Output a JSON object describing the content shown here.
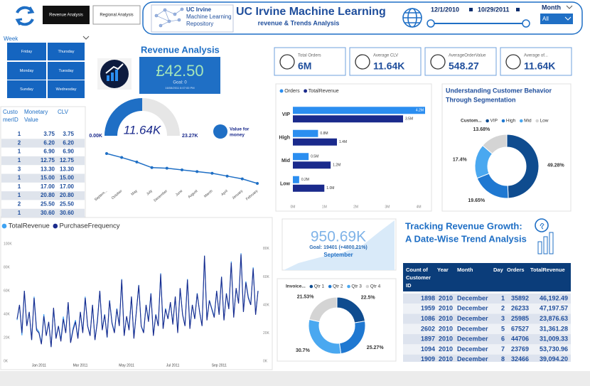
{
  "header": {
    "buttons": [
      "Revenue Analysis",
      "Regional Analysis"
    ],
    "logo": [
      "UC Irvine",
      "Machine Learning",
      "Repository"
    ],
    "title": "UC Irvine Machine Learning",
    "subtitle": "revenue & Trends Analysis",
    "date_start": "12/1/2010",
    "date_end": "10/29/2011",
    "month_label": "Month",
    "month_value": "All"
  },
  "week_slicer": {
    "label": "Week",
    "days": [
      "Friday",
      "Thursday",
      "Monday",
      "Tuesday",
      "Sunday",
      "Wednesday"
    ]
  },
  "revenue_card": {
    "title": "Revenue Analysis",
    "value": "£42.50",
    "goal": "Goal: 0",
    "timestamp": "16/08/2011 6:07:00 PM"
  },
  "kpis": [
    {
      "label": "Total Orders",
      "value": "6M"
    },
    {
      "label": "Average CLV",
      "value": "11.64K"
    },
    {
      "label": "AverageOrderValue",
      "value": "548.27"
    },
    {
      "label": "Average of...",
      "value": "11.64K"
    }
  ],
  "customer_table": {
    "columns": [
      [
        "Custo",
        "merID"
      ],
      [
        "Monetary",
        "Value"
      ],
      [
        "CLV"
      ]
    ],
    "rows": [
      [
        "1",
        "3.75",
        "3.75"
      ],
      [
        "2",
        "6.20",
        "6.20"
      ],
      [
        "1",
        "6.90",
        "6.90"
      ],
      [
        "1",
        "12.75",
        "12.75"
      ],
      [
        "3",
        "13.30",
        "13.30"
      ],
      [
        "1",
        "15.00",
        "15.00"
      ],
      [
        "1",
        "17.00",
        "17.00"
      ],
      [
        "1",
        "20.80",
        "20.80"
      ],
      [
        "2",
        "25.50",
        "25.50"
      ],
      [
        "1",
        "30.60",
        "30.60"
      ]
    ]
  },
  "value_logo": [
    "Value for",
    "money"
  ],
  "september_card": {
    "value": "950.69K",
    "goal": "Goal: 19401 (+4800.21%)",
    "label": "September"
  },
  "growth_title": [
    "Tracking Revenue Growth:",
    "A Date-Wise Trend Analysis"
  ],
  "date_table": {
    "columns": [
      [
        "Count of",
        "Customer",
        "ID"
      ],
      [
        "Year"
      ],
      [
        "Month"
      ],
      [
        "Day"
      ],
      [
        "Orders"
      ],
      [
        "TotalRevenue"
      ]
    ],
    "rows": [
      [
        "1898",
        "2010",
        "December",
        "1",
        "35892",
        "46,192.49"
      ],
      [
        "1959",
        "2010",
        "December",
        "2",
        "26233",
        "47,197.57"
      ],
      [
        "1086",
        "2010",
        "December",
        "3",
        "25985",
        "23,876.63"
      ],
      [
        "2602",
        "2010",
        "December",
        "5",
        "67527",
        "31,361.28"
      ],
      [
        "1897",
        "2010",
        "December",
        "6",
        "44706",
        "31,009.33"
      ],
      [
        "1094",
        "2010",
        "December",
        "7",
        "23769",
        "53,730.96"
      ],
      [
        "1909",
        "2010",
        "December",
        "8",
        "32466",
        "39,094.20"
      ]
    ]
  },
  "chart_data": [
    {
      "type": "gauge",
      "values": [
        11.64
      ],
      "value_labels": [
        "11.64K"
      ],
      "color": "#1f6fc5",
      "ylim": [
        0,
        23.27
      ],
      "yticks": [
        {
          "value": 0,
          "label": "0.00K"
        },
        {
          "value": 23.27,
          "label": "23.27K"
        }
      ]
    },
    {
      "type": "line",
      "markers": true,
      "color": "#1f6fc5",
      "categories": [
        "Septem...",
        "October",
        "May",
        "July",
        "December",
        "June",
        "August",
        "March",
        "April",
        "January",
        "February"
      ],
      "values": [
        15.5,
        14.8,
        14.0,
        13.0,
        12.9,
        12.6,
        12.3,
        12.0,
        11.5,
        11.0,
        10.2
      ]
    },
    {
      "type": "bar",
      "orientation": "horizontal",
      "categories": [
        "VIP",
        "High",
        "Mid",
        "Low"
      ],
      "series": [
        {
          "name": "Orders",
          "color": "#2b8ef0",
          "values": [
            4.2,
            0.8,
            0.5,
            0.2
          ],
          "value_labels": [
            "4.2M",
            "0.8M",
            "0.5M",
            "0.2M"
          ]
        },
        {
          "name": "TotalRevenue",
          "color": "#1a2a8c",
          "values": [
            3.5,
            1.4,
            1.2,
            1.0
          ],
          "value_labels": [
            "3.5M",
            "1.4M",
            "1.2M",
            "1.0M"
          ]
        }
      ],
      "xlim": [
        0,
        4.2
      ],
      "xticks": [
        {
          "value": 0,
          "label": "0M"
        },
        {
          "value": 1,
          "label": "1M"
        },
        {
          "value": 2,
          "label": "2M"
        },
        {
          "value": 3,
          "label": "3M"
        },
        {
          "value": 4,
          "label": "4M"
        }
      ]
    },
    {
      "type": "pie",
      "donut": true,
      "title": [
        "Understanding Customer Behavior",
        "Through Segmentation"
      ],
      "legend_title": "Custom...",
      "categories": [
        "VIP",
        "High",
        "Mid",
        "Low"
      ],
      "values": [
        49.28,
        19.65,
        17.4,
        13.68
      ],
      "value_labels": [
        "49.28%",
        "19.65%",
        "17.4%",
        "13.68%"
      ],
      "colors": [
        "#0f4c8f",
        "#1f78d1",
        "#4aa8f0",
        "#d4d4d4"
      ]
    },
    {
      "type": "line",
      "grid": false,
      "categories": [
        null,
        null,
        null,
        null,
        null,
        null,
        null,
        null,
        null,
        "Jan 2011",
        null,
        null,
        null,
        null,
        null,
        null,
        null,
        null,
        null,
        null,
        null,
        null,
        null,
        null,
        null,
        null,
        "Mar 2011",
        null,
        null,
        null,
        null,
        null,
        null,
        null,
        null,
        null,
        null,
        null,
        null,
        null,
        null,
        null,
        null,
        null,
        null,
        "May 2011",
        null,
        null,
        null,
        null,
        null,
        null,
        null,
        null,
        null,
        null,
        null,
        null,
        null,
        null,
        null,
        null,
        null,
        null,
        "Jul 2011",
        null,
        null,
        null,
        null,
        null,
        null,
        null,
        null,
        null,
        null,
        null,
        null,
        null,
        null,
        null,
        null,
        null,
        null,
        "Sep 2011",
        null,
        null,
        null,
        null,
        null,
        null,
        null,
        null,
        null,
        null,
        null,
        null,
        null,
        null,
        null,
        null
      ],
      "series": [
        {
          "name": "TotalRevenue",
          "color": "#3ea2f2",
          "values": [
            35,
            48,
            22,
            60,
            30,
            42,
            18,
            55,
            28,
            25,
            15,
            40,
            22,
            33,
            12,
            45,
            20,
            30,
            18,
            38,
            24,
            50,
            16,
            28,
            35,
            20,
            42,
            25,
            55,
            30,
            22,
            48,
            18,
            35,
            60,
            27,
            40,
            20,
            52,
            33,
            25,
            45,
            30,
            70,
            22,
            38,
            28,
            55,
            20,
            42,
            65,
            30,
            25,
            48,
            35,
            58,
            22,
            40,
            30,
            75,
            28,
            45,
            36,
            50,
            32,
            55,
            25,
            62,
            40,
            30,
            70,
            28,
            48,
            36,
            58,
            42,
            30,
            90,
            35,
            52,
            45,
            38,
            60,
            40,
            72,
            35,
            58,
            45,
            85,
            38,
            62,
            50,
            92,
            42,
            68,
            55,
            48,
            80,
            40,
            60
          ]
        },
        {
          "name": "PurchaseFrequency",
          "color": "#1a2a8c",
          "axis": "y2",
          "values": [
            30,
            40,
            20,
            50,
            25,
            35,
            15,
            45,
            22,
            20,
            12,
            32,
            18,
            28,
            10,
            38,
            16,
            25,
            14,
            30,
            20,
            42,
            13,
            22,
            28,
            16,
            35,
            20,
            45,
            25,
            18,
            40,
            15,
            28,
            50,
            22,
            33,
            17,
            43,
            27,
            20,
            37,
            25,
            58,
            18,
            32,
            22,
            46,
            16,
            35,
            54,
            25,
            20,
            40,
            28,
            48,
            18,
            33,
            25,
            62,
            23,
            37,
            30,
            42,
            26,
            46,
            20,
            52,
            33,
            25,
            58,
            23,
            40,
            30,
            48,
            35,
            25,
            75,
            29,
            43,
            37,
            31,
            50,
            33,
            60,
            29,
            48,
            37,
            70,
            31,
            52,
            41,
            76,
            35,
            56,
            45,
            40,
            66,
            33,
            50
          ]
        }
      ],
      "ylim": [
        0,
        100
      ],
      "yticks": [
        {
          "value": 0,
          "label": "0K"
        },
        {
          "value": 20,
          "label": "20K"
        },
        {
          "value": 40,
          "label": "40K"
        },
        {
          "value": 60,
          "label": "60K"
        },
        {
          "value": 80,
          "label": "80K"
        },
        {
          "value": 100,
          "label": "100K"
        }
      ],
      "y2lim": [
        0,
        83.5
      ],
      "y2ticks": [
        {
          "value": 0,
          "label": "0K"
        },
        {
          "value": 20,
          "label": "20K"
        },
        {
          "value": 40,
          "label": "40K"
        },
        {
          "value": 60,
          "label": "60K"
        },
        {
          "value": 80,
          "label": "80K"
        }
      ]
    },
    {
      "type": "pie",
      "donut": true,
      "legend_title": "Invoice...",
      "categories": [
        "Qtr 1",
        "Qtr 2",
        "Qtr 3",
        "Qtr 4"
      ],
      "values": [
        22.5,
        25.27,
        30.7,
        21.53
      ],
      "value_labels": [
        "22.5%",
        "25.27%",
        "30.7%",
        "21.53%"
      ],
      "colors": [
        "#0f4c8f",
        "#1f78d1",
        "#4aa8f0",
        "#d4d4d4"
      ]
    }
  ]
}
